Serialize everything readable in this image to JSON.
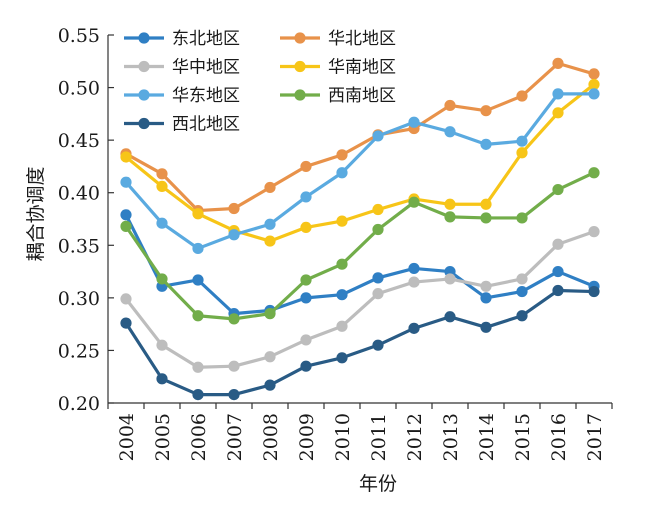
{
  "chart_data": {
    "type": "line",
    "xlabel": "年份",
    "ylabel": "耦合协调度",
    "categories": [
      "2004",
      "2005",
      "2006",
      "2007",
      "2008",
      "2009",
      "2010",
      "2011",
      "2012",
      "2013",
      "2014",
      "2015",
      "2016",
      "2017"
    ],
    "ylim": [
      0.2,
      0.55
    ],
    "yticks": [
      "0.20",
      "0.25",
      "0.30",
      "0.35",
      "0.40",
      "0.45",
      "0.50",
      "0.55"
    ],
    "grid": false,
    "legend_position": "top-left",
    "series": [
      {
        "name": "东北地区",
        "color": "#2f7fc4",
        "values": [
          0.379,
          0.311,
          0.317,
          0.285,
          0.288,
          0.3,
          0.303,
          0.319,
          0.328,
          0.325,
          0.3,
          0.306,
          0.325,
          0.311
        ]
      },
      {
        "name": "华北地区",
        "color": "#e8924a",
        "values": [
          0.437,
          0.418,
          0.383,
          0.385,
          0.405,
          0.425,
          0.436,
          0.455,
          0.461,
          0.483,
          0.478,
          0.492,
          0.523,
          0.513
        ]
      },
      {
        "name": "华中地区",
        "color": "#bdbdbd",
        "values": [
          0.299,
          0.255,
          0.234,
          0.235,
          0.244,
          0.26,
          0.273,
          0.304,
          0.315,
          0.318,
          0.311,
          0.318,
          0.351,
          0.363
        ]
      },
      {
        "name": "华南地区",
        "color": "#f7c518",
        "values": [
          0.434,
          0.406,
          0.38,
          0.364,
          0.354,
          0.367,
          0.373,
          0.384,
          0.394,
          0.389,
          0.389,
          0.438,
          0.476,
          0.503
        ]
      },
      {
        "name": "华东地区",
        "color": "#5aaae0",
        "values": [
          0.41,
          0.371,
          0.347,
          0.36,
          0.37,
          0.396,
          0.419,
          0.454,
          0.467,
          0.458,
          0.446,
          0.449,
          0.494,
          0.494
        ]
      },
      {
        "name": "西南地区",
        "color": "#72ad4a",
        "values": [
          0.368,
          0.318,
          0.283,
          0.28,
          0.285,
          0.317,
          0.332,
          0.365,
          0.391,
          0.377,
          0.376,
          0.376,
          0.403,
          0.419
        ]
      },
      {
        "name": "西北地区",
        "color": "#295b85",
        "values": [
          0.276,
          0.223,
          0.208,
          0.208,
          0.217,
          0.235,
          0.243,
          0.255,
          0.271,
          0.282,
          0.272,
          0.283,
          0.307,
          0.306
        ]
      }
    ]
  }
}
